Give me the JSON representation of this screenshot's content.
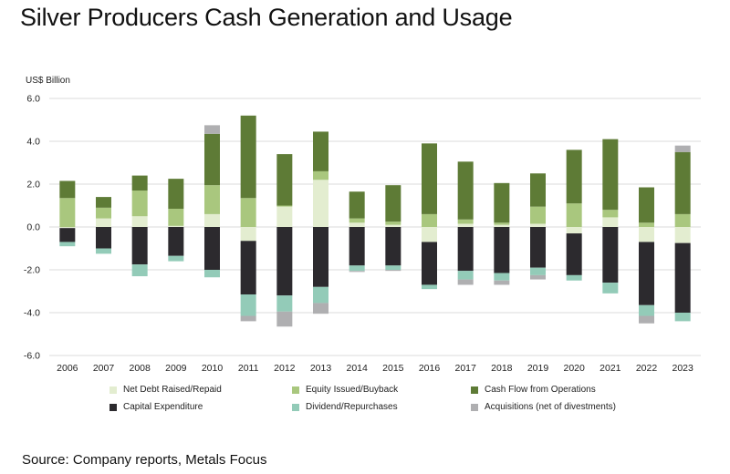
{
  "title": "Silver Producers Cash Generation and Usage",
  "source": "Source: Company reports, Metals Focus",
  "chart_data": {
    "type": "bar",
    "stacked": true,
    "ylabel": "US$ Billion",
    "ylim": [
      -6.0,
      6.0
    ],
    "yticks": [
      "6.0",
      "4.0",
      "2.0",
      "0.0",
      "-2.0",
      "-4.0",
      "-6.0"
    ],
    "categories": [
      "2006",
      "2007",
      "2008",
      "2009",
      "2010",
      "2011",
      "2012",
      "2013",
      "2014",
      "2015",
      "2016",
      "2017",
      "2018",
      "2019",
      "2020",
      "2021",
      "2022",
      "2023"
    ],
    "legend_position": "bottom",
    "series": [
      {
        "name": "Net Debt Raised/Repaid",
        "color": "#e3edd0",
        "values": [
          -0.05,
          0.4,
          0.5,
          0.05,
          0.6,
          -0.65,
          0.95,
          2.2,
          0.2,
          0.1,
          -0.7,
          0.15,
          0.1,
          0.15,
          -0.3,
          0.45,
          -0.7,
          -0.75
        ]
      },
      {
        "name": "Equity Issued/Buyback",
        "color": "#a9c77e",
        "values": [
          1.35,
          0.5,
          1.2,
          0.8,
          1.35,
          1.35,
          0.05,
          0.4,
          0.2,
          0.15,
          0.6,
          0.2,
          0.1,
          0.8,
          1.1,
          0.35,
          0.2,
          0.6
        ]
      },
      {
        "name": "Cash Flow from Operations",
        "color": "#5e7b36",
        "values": [
          0.8,
          0.5,
          0.7,
          1.4,
          2.4,
          3.85,
          2.4,
          1.85,
          1.25,
          1.7,
          3.3,
          2.7,
          1.85,
          1.55,
          2.5,
          3.3,
          1.65,
          2.9
        ]
      },
      {
        "name": "Capital Expenditure",
        "color": "#2c2a2e",
        "values": [
          -0.65,
          -1.0,
          -1.75,
          -1.35,
          -2.0,
          -2.5,
          -3.2,
          -2.8,
          -1.8,
          -1.8,
          -2.0,
          -2.05,
          -2.15,
          -1.9,
          -1.95,
          -2.6,
          -2.95,
          -3.25
        ]
      },
      {
        "name": "Dividend/Repurchases",
        "color": "#93cbb8",
        "values": [
          -0.2,
          -0.25,
          -0.55,
          -0.25,
          -0.35,
          -1.0,
          -0.75,
          -0.75,
          -0.25,
          -0.2,
          -0.2,
          -0.4,
          -0.35,
          -0.35,
          -0.25,
          -0.5,
          -0.5,
          -0.4
        ]
      },
      {
        "name": "Acquisitions (net of divestments)",
        "color": "#afafb1",
        "values": [
          0,
          0,
          0,
          0.0,
          0.4,
          -0.25,
          -0.7,
          -0.5,
          -0.05,
          -0.05,
          0,
          -0.25,
          -0.2,
          -0.2,
          0,
          0,
          -0.35,
          0.3
        ],
        "note_positive_on_top": true
      }
    ]
  }
}
